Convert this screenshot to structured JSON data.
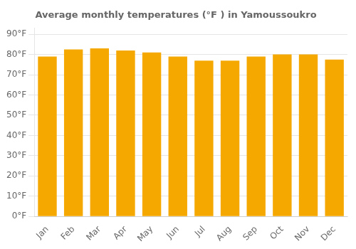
{
  "chart_data": {
    "type": "bar",
    "title": "Average monthly temperatures (°F ) in Yamoussoukro",
    "categories": [
      "Jan",
      "Feb",
      "Mar",
      "Apr",
      "May",
      "Jun",
      "Jul",
      "Aug",
      "Sep",
      "Oct",
      "Nov",
      "Dec"
    ],
    "values": [
      79,
      82.5,
      83,
      82,
      81,
      79,
      77,
      77,
      79,
      80,
      80,
      77.5
    ],
    "color": "#F5A800",
    "ylim": [
      0,
      93
    ],
    "yticks": [
      {
        "value": 0,
        "label": "0°F"
      },
      {
        "value": 10,
        "label": "10°F"
      },
      {
        "value": 20,
        "label": "20°F"
      },
      {
        "value": 30,
        "label": "30°F"
      },
      {
        "value": 40,
        "label": "40°F"
      },
      {
        "value": 50,
        "label": "50°F"
      },
      {
        "value": 60,
        "label": "60°F"
      },
      {
        "value": 70,
        "label": "70°F"
      },
      {
        "value": 80,
        "label": "80°F"
      },
      {
        "value": 90,
        "label": "90°F"
      }
    ],
    "grid": true
  }
}
